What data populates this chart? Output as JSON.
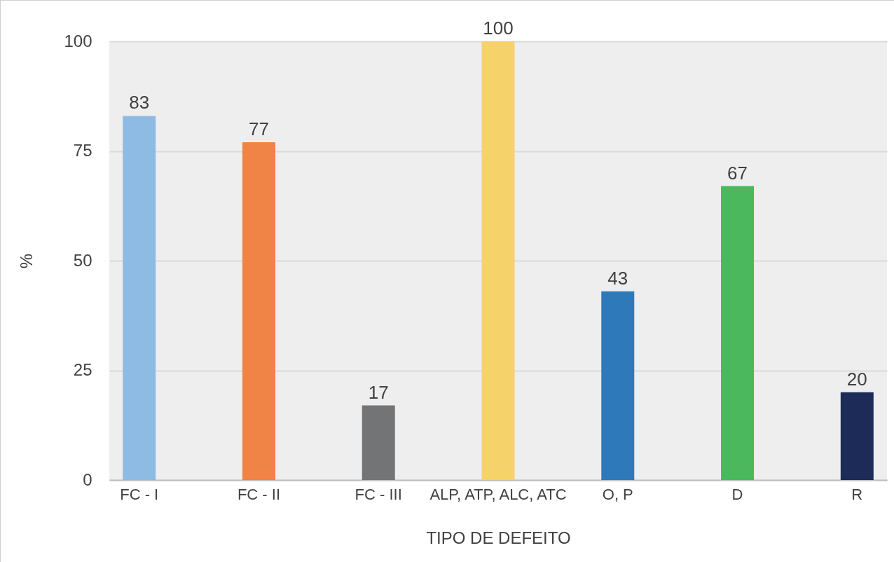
{
  "chart_data": {
    "type": "bar",
    "xlabel": "TIPO DE DEFEITO",
    "ylabel": "%",
    "categories": [
      "FC - I",
      "FC - II",
      "FC - III",
      "ALP, ATP, ALC, ATC",
      "O, P",
      "D",
      "R"
    ],
    "values": [
      83,
      77,
      17,
      100,
      43,
      67,
      20
    ],
    "colors": [
      "#8dbbe3",
      "#f08346",
      "#727476",
      "#f6d26b",
      "#2e79ba",
      "#4bb85e",
      "#1d2b58"
    ],
    "ylim": [
      0,
      100
    ],
    "yticks": [
      0,
      25,
      50,
      75,
      100
    ],
    "grid": "y",
    "data_labels": true
  }
}
